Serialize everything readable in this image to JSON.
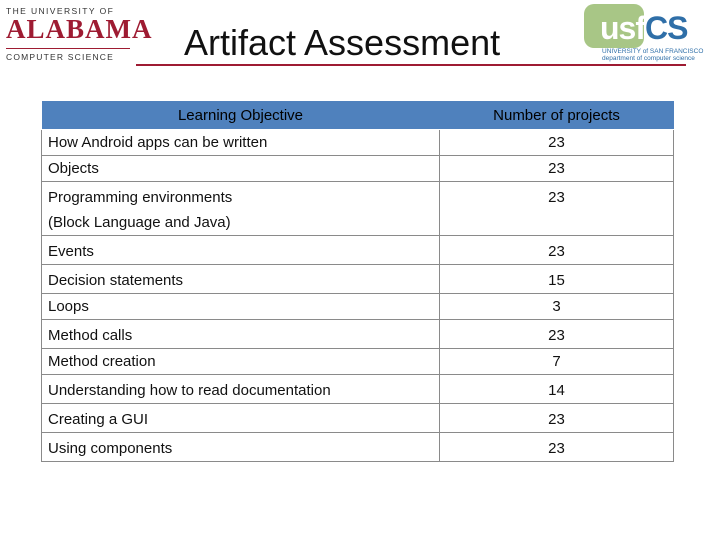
{
  "header": {
    "title": "Artifact Assessment",
    "left_logo": {
      "top": "THE UNIVERSITY OF",
      "main": "ALABAMA",
      "bottom": "COMPUTER SCIENCE",
      "color": "#9e1b32"
    },
    "right_logo": {
      "main_usf": "usf",
      "main_cs": "CS",
      "sub1": "UNIVERSITY of SAN FRANCISCO",
      "sub2": "department of computer science",
      "colors": {
        "green": "#a8c686",
        "blue": "#2f6fa8"
      }
    }
  },
  "table": {
    "header_color": "#4f81bd",
    "columns": [
      "Learning Objective",
      "Number of projects"
    ],
    "rows": [
      {
        "objective": "How Android apps can be written",
        "count": "23"
      },
      {
        "objective": "Objects",
        "count": "23"
      },
      {
        "objective": "Programming environments",
        "objective_line2": "(Block Language and Java)",
        "count": "23"
      },
      {
        "objective": "Events",
        "count": "23"
      },
      {
        "objective": "Decision statements",
        "count": "15"
      },
      {
        "objective": "Loops",
        "count": "3"
      },
      {
        "objective": "Method calls",
        "count": "23"
      },
      {
        "objective": "Method creation",
        "count": "7"
      },
      {
        "objective": "Understanding how to read documentation",
        "count": "14"
      },
      {
        "objective": "Creating a GUI",
        "count": "23"
      },
      {
        "objective": "Using components",
        "count": "23"
      }
    ]
  }
}
